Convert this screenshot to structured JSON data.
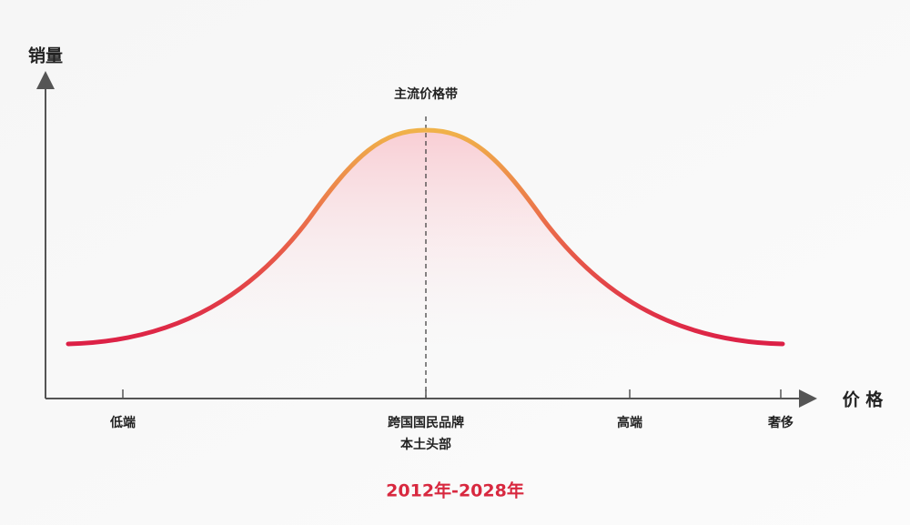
{
  "axes": {
    "y_label": "销量",
    "x_label": "价 格"
  },
  "peak_label": "主流价格带",
  "x_labels": [
    {
      "lines": [
        "低端"
      ]
    },
    {
      "lines": [
        "跨国国民品牌",
        "本土头部"
      ]
    },
    {
      "lines": [
        "高端"
      ]
    },
    {
      "lines": [
        "奢侈"
      ]
    }
  ],
  "period": "2012年-2028年"
}
